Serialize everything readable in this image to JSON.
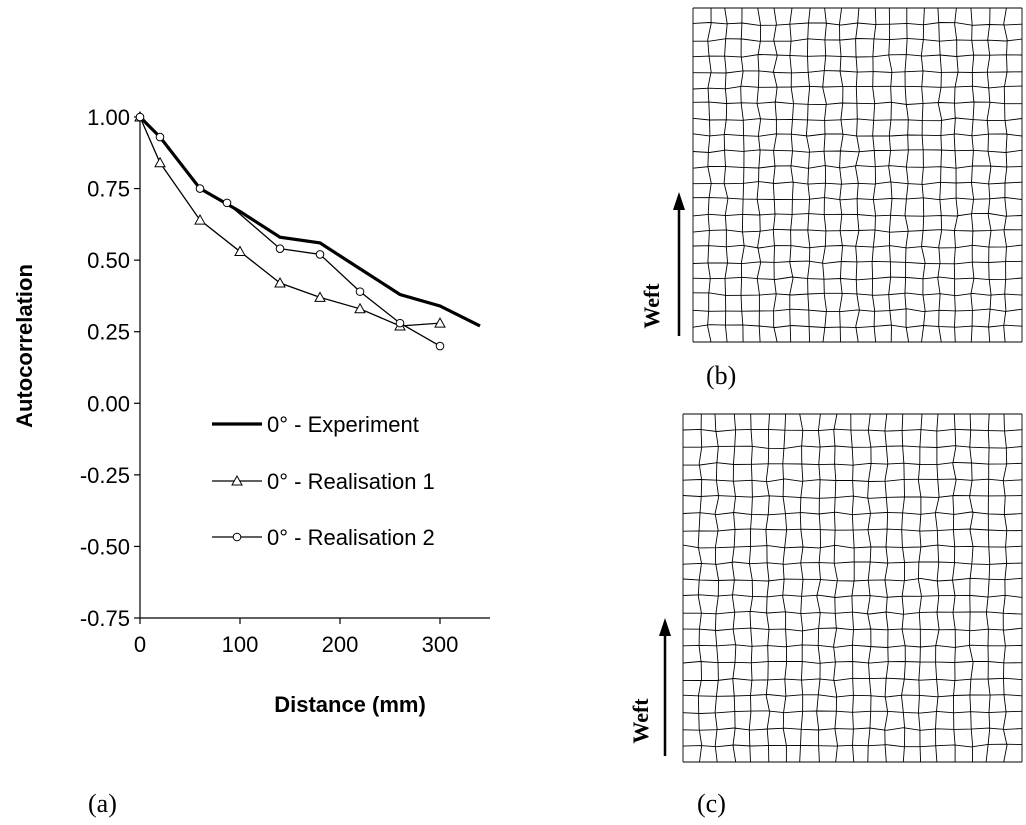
{
  "panels": {
    "a": "(a)",
    "b": "(b)",
    "c": "(c)"
  },
  "weft_label": "Weft",
  "chart_data": {
    "type": "line",
    "xlabel": "Distance (mm)",
    "ylabel": "Autocorrelation",
    "xlim": [
      0,
      350
    ],
    "ylim": [
      -0.75,
      1.0
    ],
    "xticks": [
      0,
      100,
      200,
      300
    ],
    "xtick_labels": [
      "0",
      "100",
      "200",
      "300"
    ],
    "yticks": [
      1.0,
      0.75,
      0.5,
      0.25,
      0.0,
      -0.25,
      -0.5,
      -0.75
    ],
    "ytick_labels": [
      "1.00",
      "0.75",
      "0.50",
      "0.25",
      "0.00",
      "-0.25",
      "-0.50",
      "-0.75"
    ],
    "grid": false,
    "legend_position": "center",
    "series": [
      {
        "name": "0° - Experiment",
        "marker": "none",
        "x": [
          0,
          20,
          60,
          100,
          140,
          180,
          220,
          260,
          300,
          340
        ],
        "y": [
          1.0,
          0.93,
          0.75,
          0.67,
          0.58,
          0.56,
          0.47,
          0.38,
          0.34,
          0.27
        ]
      },
      {
        "name": "0° - Realisation 1",
        "marker": "triangle",
        "x": [
          0,
          20,
          60,
          100,
          140,
          180,
          220,
          260,
          300
        ],
        "y": [
          1.0,
          0.84,
          0.64,
          0.53,
          0.42,
          0.37,
          0.33,
          0.27,
          0.28
        ]
      },
      {
        "name": "0° - Realisation 2",
        "marker": "circle",
        "x": [
          0,
          20,
          60,
          87,
          140,
          180,
          220,
          260,
          300
        ],
        "y": [
          1.0,
          0.93,
          0.75,
          0.7,
          0.54,
          0.52,
          0.39,
          0.28,
          0.2
        ]
      }
    ]
  }
}
